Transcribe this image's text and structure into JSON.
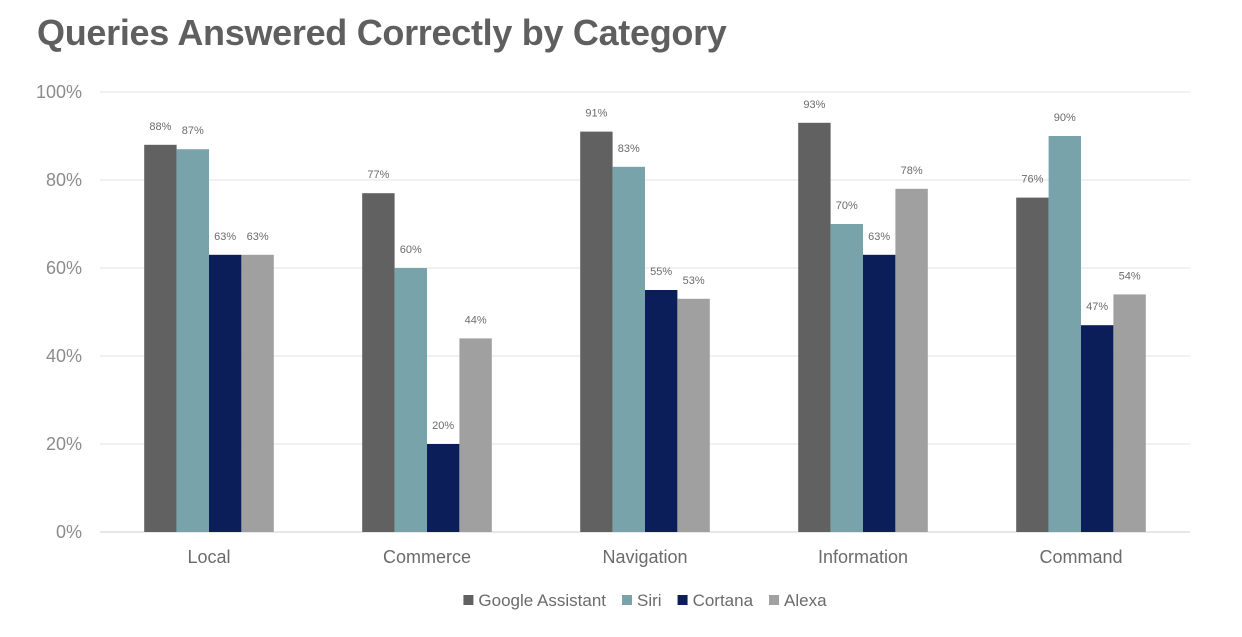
{
  "chart_data": {
    "type": "bar",
    "title": "Queries Answered Correctly by Category",
    "categories": [
      "Local",
      "Commerce",
      "Navigation",
      "Information",
      "Command"
    ],
    "series": [
      {
        "name": "Google Assistant",
        "color": "#616161",
        "values": [
          88,
          77,
          91,
          93,
          76
        ],
        "labels": [
          "88%",
          "77%",
          "91%",
          "93%",
          "76%"
        ]
      },
      {
        "name": "Siri",
        "color": "#79a3aa",
        "values": [
          87,
          60,
          83,
          70,
          90
        ],
        "labels": [
          "87%",
          "60%",
          "83%",
          "70%",
          "90%"
        ]
      },
      {
        "name": "Cortana",
        "color": "#0b1e59",
        "values": [
          63,
          20,
          55,
          63,
          47
        ],
        "labels": [
          "63%",
          "20%",
          "55%",
          "63%",
          "47%"
        ]
      },
      {
        "name": "Alexa",
        "color": "#a0a0a0",
        "values": [
          63,
          44,
          53,
          78,
          54
        ],
        "labels": [
          "63%",
          "44%",
          "53%",
          "78%",
          "54%"
        ]
      }
    ],
    "yticks": [
      "0%",
      "20%",
      "40%",
      "60%",
      "80%",
      "100%"
    ],
    "ylim": [
      0,
      100
    ],
    "grid": true,
    "legend": "bottom"
  }
}
